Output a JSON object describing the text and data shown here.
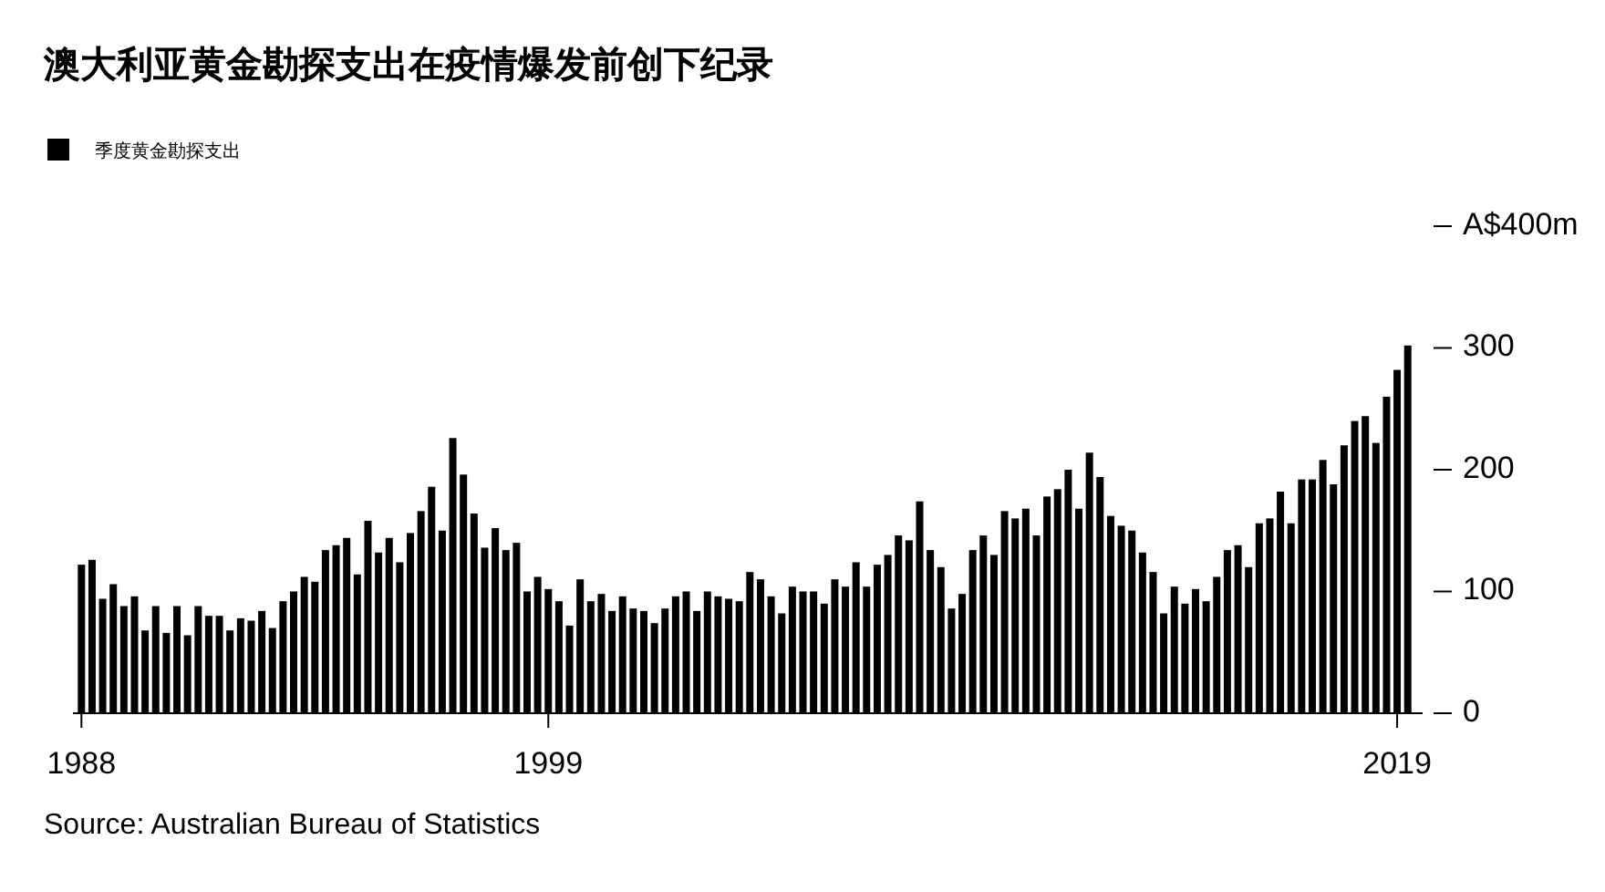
{
  "chart_data": {
    "type": "bar",
    "title": "澳大利亚黄金勘探支出在疫情爆发前创下纪录",
    "annotations": [
      "Source: Australian Bureau of Statistics"
    ],
    "x": [
      1988,
      1988.25,
      1988.5,
      1988.75,
      1989,
      1989.25,
      1989.5,
      1989.75,
      1990,
      1990.25,
      1990.5,
      1990.75,
      1991,
      1991.25,
      1991.5,
      1991.75,
      1992,
      1992.25,
      1992.5,
      1992.75,
      1993,
      1993.25,
      1993.5,
      1993.75,
      1994,
      1994.25,
      1994.5,
      1994.75,
      1995,
      1995.25,
      1995.5,
      1995.75,
      1996,
      1996.25,
      1996.5,
      1996.75,
      1997,
      1997.25,
      1997.5,
      1997.75,
      1998,
      1998.25,
      1998.5,
      1998.75,
      1999,
      1999.25,
      1999.5,
      1999.75,
      2000,
      2000.25,
      2000.5,
      2000.75,
      2001,
      2001.25,
      2001.5,
      2001.75,
      2002,
      2002.25,
      2002.5,
      2002.75,
      2003,
      2003.25,
      2003.5,
      2003.75,
      2004,
      2004.25,
      2004.5,
      2004.75,
      2005,
      2005.25,
      2005.5,
      2005.75,
      2006,
      2006.25,
      2006.5,
      2006.75,
      2007,
      2007.25,
      2007.5,
      2007.75,
      2008,
      2008.25,
      2008.5,
      2008.75,
      2009,
      2009.25,
      2009.5,
      2009.75,
      2010,
      2010.25,
      2010.5,
      2010.75,
      2011,
      2011.25,
      2011.5,
      2011.75,
      2012,
      2012.25,
      2012.5,
      2012.75,
      2013,
      2013.25,
      2013.5,
      2013.75,
      2014,
      2014.25,
      2014.5,
      2014.75,
      2015,
      2015.25,
      2015.5,
      2015.75,
      2016,
      2016.25,
      2016.5,
      2016.75,
      2017,
      2017.25,
      2017.5,
      2017.75,
      2018,
      2018.25,
      2018.5,
      2018.75,
      2019,
      2019.25
    ],
    "series": [
      {
        "name": "季度黄金勘探支出",
        "color": "#000000",
        "values": [
          122,
          126,
          94,
          106,
          88,
          96,
          68,
          88,
          66,
          88,
          64,
          88,
          80,
          80,
          68,
          78,
          76,
          84,
          70,
          92,
          100,
          112,
          108,
          134,
          138,
          144,
          114,
          158,
          132,
          144,
          124,
          148,
          166,
          186,
          150,
          226,
          196,
          164,
          136,
          152,
          134,
          140,
          100,
          112,
          102,
          92,
          72,
          110,
          92,
          98,
          84,
          96,
          86,
          84,
          74,
          86,
          96,
          100,
          84,
          100,
          96,
          94,
          92,
          116,
          110,
          96,
          82,
          104,
          100,
          100,
          90,
          110,
          104,
          124,
          104,
          122,
          130,
          146,
          142,
          174,
          134,
          120,
          86,
          98,
          134,
          146,
          130,
          166,
          160,
          168,
          146,
          178,
          184,
          200,
          168,
          214,
          194,
          162,
          154,
          150,
          132,
          116,
          82,
          104,
          90,
          102,
          92,
          112,
          134,
          138,
          120,
          156,
          160,
          182,
          156,
          192,
          192,
          208,
          188,
          220,
          240,
          244,
          222,
          260,
          282,
          302
        ]
      }
    ],
    "xlim": [
      1987.8,
      2019.6
    ],
    "xticks": [
      1988,
      1999,
      2019
    ],
    "ylim": [
      0,
      400
    ],
    "yticks": [
      0,
      100,
      200,
      300,
      {
        "value": 400,
        "label": "A$400m"
      }
    ],
    "legend": "top left"
  }
}
